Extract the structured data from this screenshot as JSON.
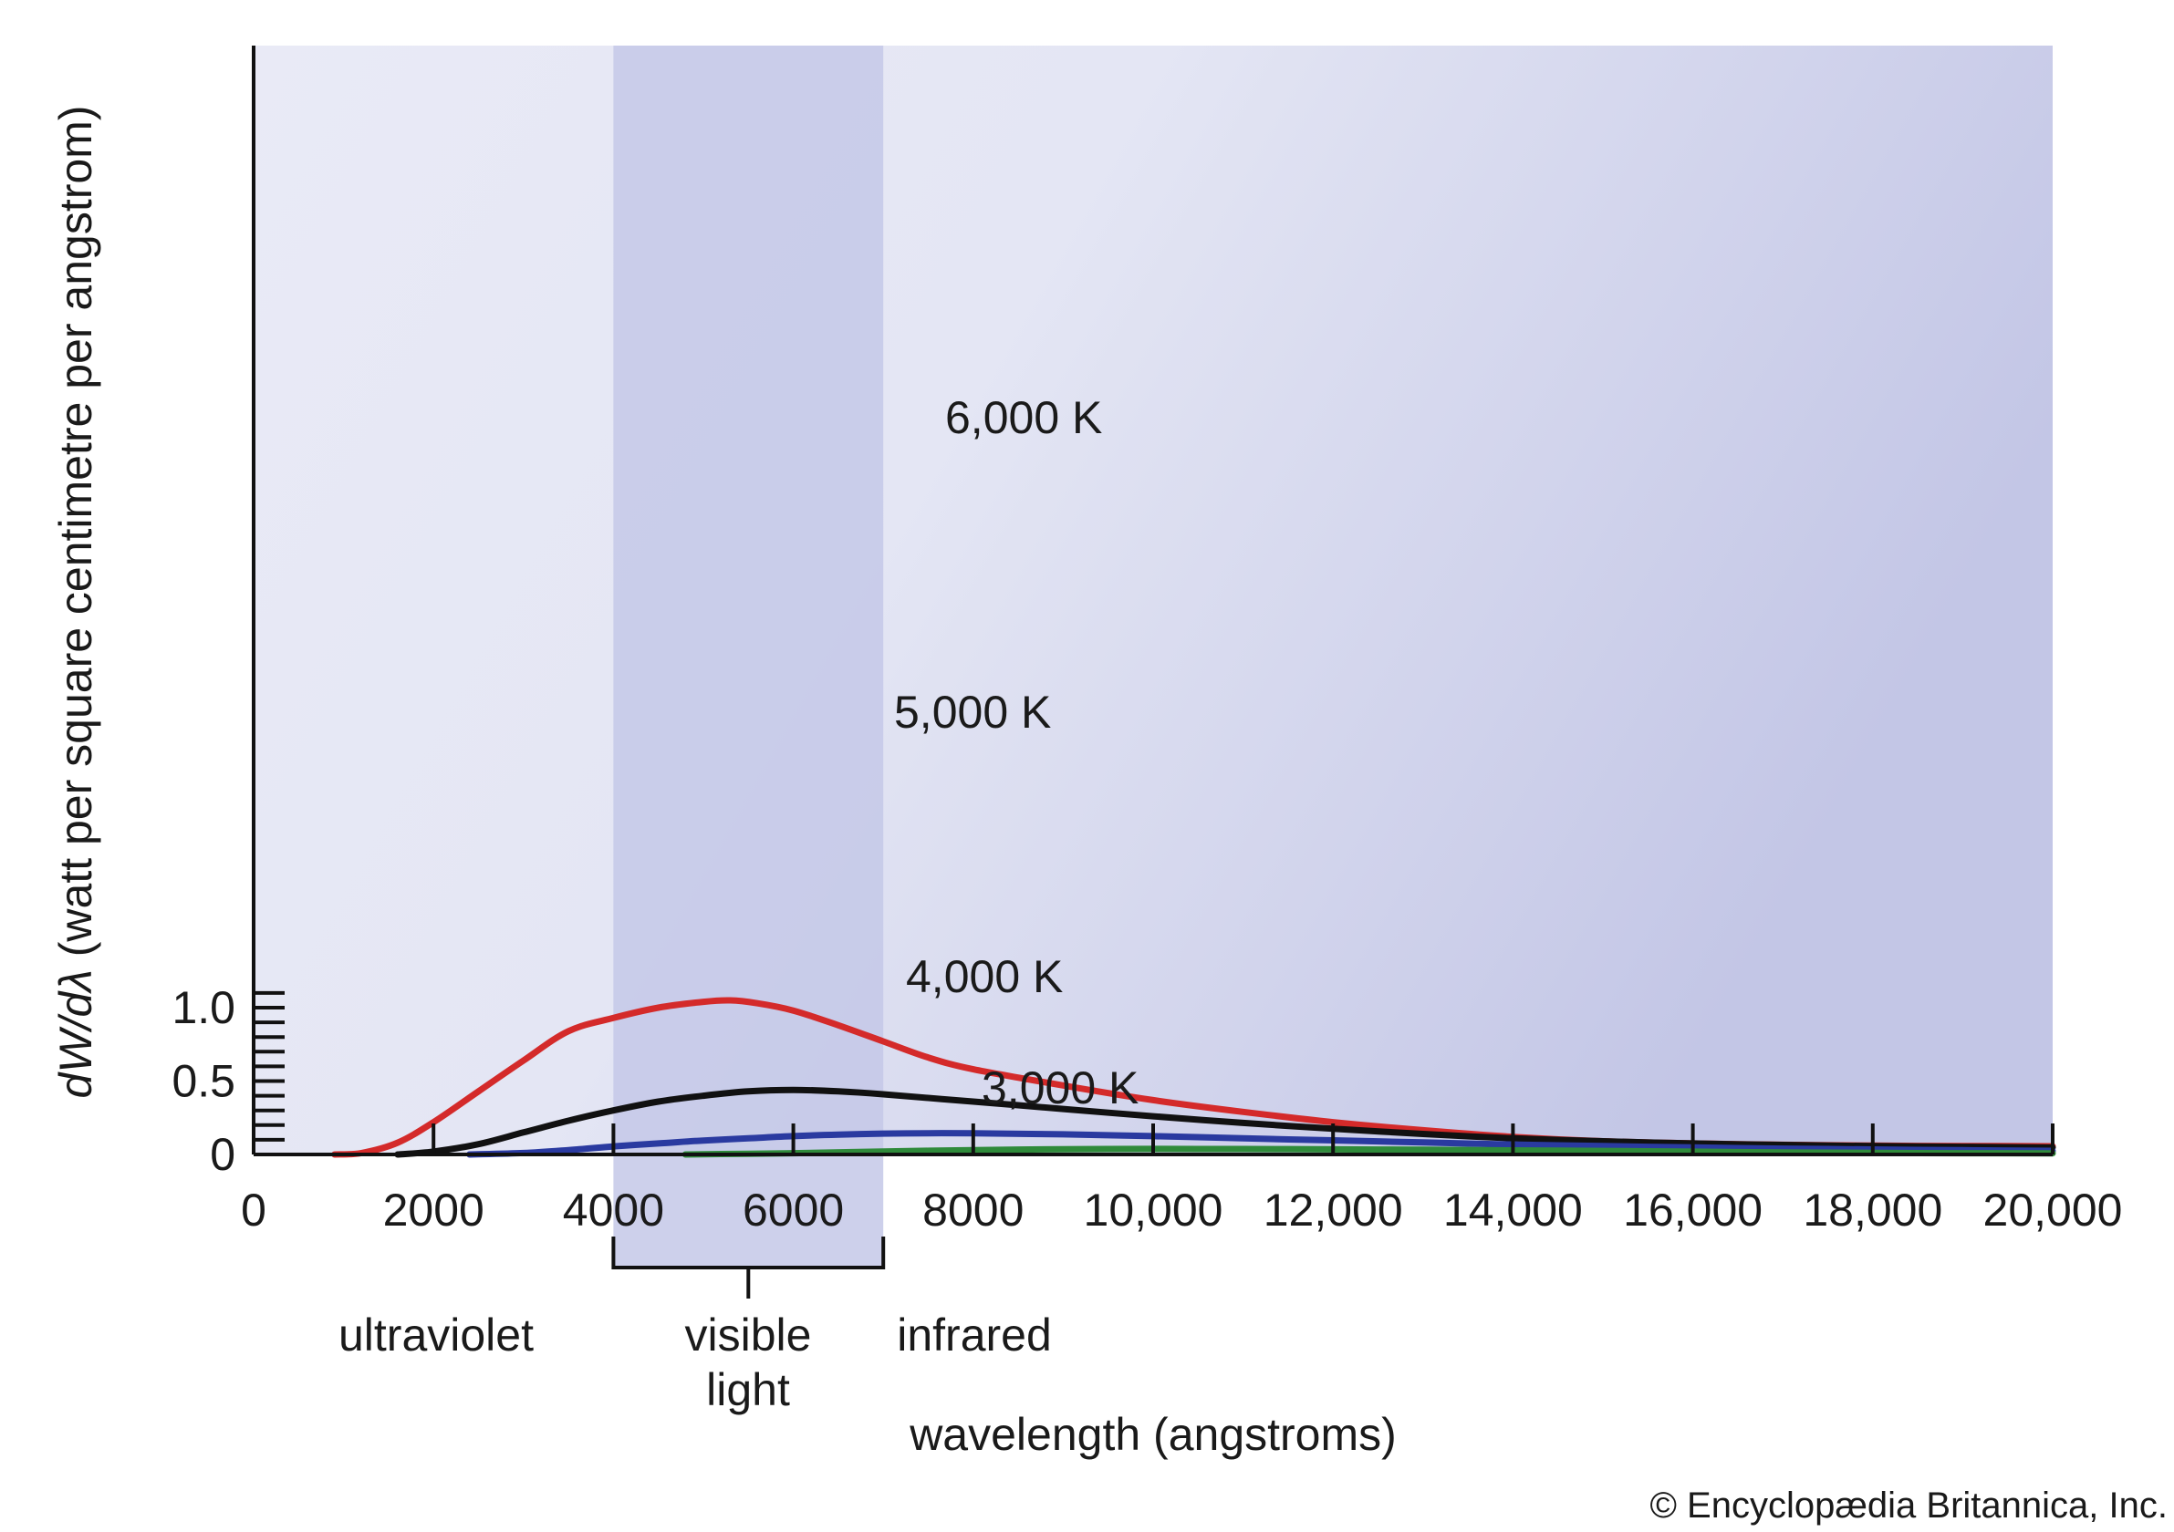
{
  "chart_data": {
    "type": "line",
    "xlabel": "wavelength (angstroms)",
    "ylabel_italic": "dW/dλ",
    "ylabel_rest": " (watt per square centimetre per angstrom)",
    "xlim": [
      0,
      20000
    ],
    "ylim": [
      0,
      1.1
    ],
    "x_ticks": [
      0,
      2000,
      4000,
      6000,
      8000,
      10000,
      12000,
      14000,
      16000,
      18000,
      20000
    ],
    "x_tick_labels": [
      "0",
      "2000",
      "4000",
      "6000",
      "8000",
      "10,000",
      "12,000",
      "14,000",
      "16,000",
      "18,000",
      "20,000"
    ],
    "y_ticks": [
      0,
      0.1,
      0.2,
      0.3,
      0.4,
      0.5,
      0.6,
      0.7,
      0.8,
      0.9,
      1.0,
      1.1
    ],
    "y_tick_labels": [
      {
        "value": 0,
        "label": "0"
      },
      {
        "value": 0.5,
        "label": "0.5"
      },
      {
        "value": 1.0,
        "label": "1.0"
      }
    ],
    "visible_band": [
      4000,
      7000
    ],
    "regions": {
      "ultraviolet": "ultraviolet",
      "visible_line1": "visible",
      "visible_line2": "light",
      "infrared": "infrared"
    },
    "series": [
      {
        "name": "6,000 K",
        "color": "#d42a2a",
        "x": [
          900,
          1200,
          1600,
          2000,
          2500,
          3000,
          3500,
          4000,
          4500,
          5000,
          5300,
          5600,
          6000,
          6500,
          7000,
          7500,
          8000,
          9000,
          10000,
          11000,
          12000,
          13000,
          14000,
          15000,
          16000,
          17000,
          18000,
          19000,
          20000
        ],
        "y": [
          0,
          0.01,
          0.08,
          0.22,
          0.43,
          0.64,
          0.84,
          0.93,
          1.0,
          1.04,
          1.05,
          1.03,
          0.98,
          0.88,
          0.77,
          0.66,
          0.58,
          0.47,
          0.37,
          0.29,
          0.22,
          0.165,
          0.12,
          0.09,
          0.075,
          0.066,
          0.06,
          0.058,
          0.056
        ]
      },
      {
        "name": "5,000 K",
        "color": "#111111",
        "x": [
          1600,
          2000,
          2500,
          3000,
          3500,
          4000,
          4500,
          5000,
          5500,
          6000,
          6500,
          7000,
          8000,
          9000,
          10000,
          11000,
          12000,
          13000,
          14000,
          15000,
          16000,
          17000,
          18000,
          19000,
          20000
        ],
        "y": [
          0,
          0.02,
          0.07,
          0.15,
          0.23,
          0.3,
          0.36,
          0.4,
          0.43,
          0.44,
          0.43,
          0.41,
          0.36,
          0.31,
          0.26,
          0.215,
          0.175,
          0.14,
          0.11,
          0.09,
          0.075,
          0.065,
          0.057,
          0.052,
          0.047
        ]
      },
      {
        "name": "4,000 K",
        "color": "#2a3aa0",
        "x": [
          2400,
          3000,
          3500,
          4000,
          4500,
          5000,
          5500,
          6000,
          6500,
          7000,
          7500,
          8000,
          9000,
          10000,
          11000,
          12000,
          13000,
          14000,
          15000,
          16000,
          17000,
          18000,
          19000,
          20000
        ],
        "y": [
          0,
          0.01,
          0.03,
          0.055,
          0.075,
          0.095,
          0.11,
          0.125,
          0.135,
          0.142,
          0.145,
          0.144,
          0.137,
          0.125,
          0.11,
          0.096,
          0.082,
          0.068,
          0.057,
          0.048,
          0.04,
          0.034,
          0.029,
          0.025
        ]
      },
      {
        "name": "3,000 K",
        "color": "#2f8a3a",
        "x": [
          4800,
          5500,
          6000,
          7000,
          8000,
          9000,
          10000,
          11000,
          12000,
          13000,
          14000,
          15000,
          16000,
          17000,
          18000,
          19000,
          20000
        ],
        "y": [
          0,
          0.005,
          0.009,
          0.02,
          0.03,
          0.036,
          0.038,
          0.037,
          0.035,
          0.032,
          0.028,
          0.024,
          0.019,
          0.014,
          0.011,
          0.009,
          0.008
        ]
      }
    ],
    "credit": "© Encyclopædia Britannica, Inc."
  }
}
